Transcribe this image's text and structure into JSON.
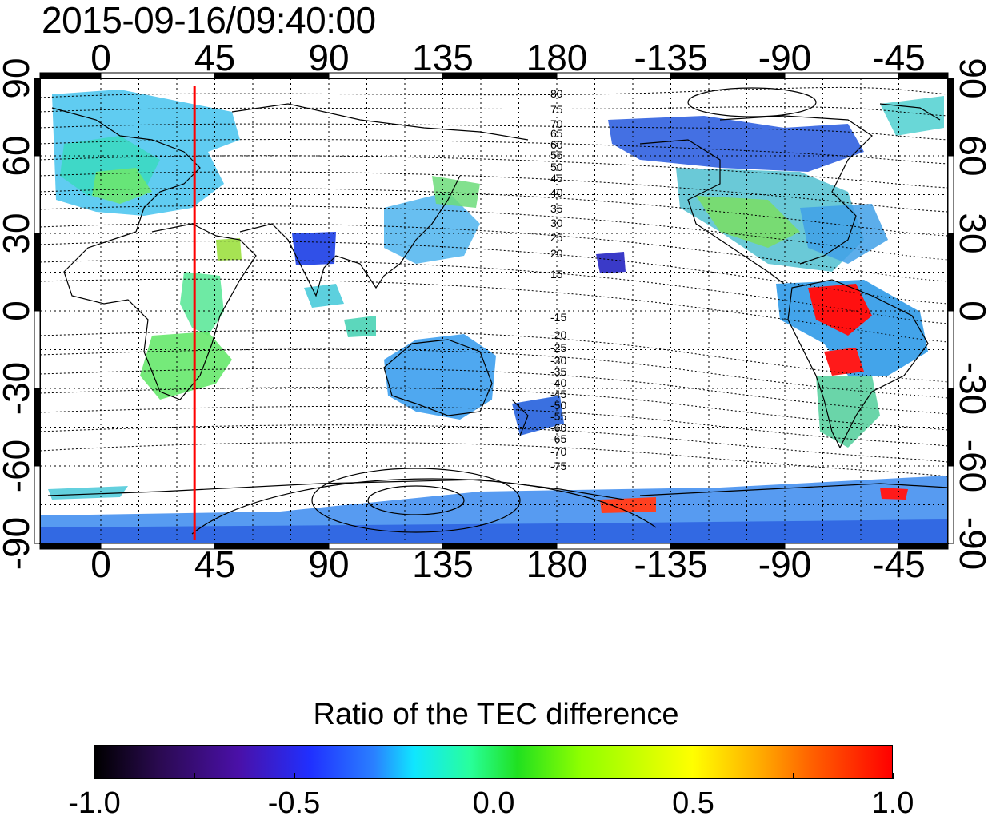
{
  "title": "2015-09-16/09:40:00",
  "map": {
    "x_tick_labels": [
      "0",
      "45",
      "90",
      "135",
      "180",
      "-135",
      "-90",
      "-45"
    ],
    "y_tick_labels": [
      "90",
      "60",
      "30",
      "0",
      "-30",
      "-60",
      "-90"
    ],
    "contour_labels_north": [
      "80",
      "75",
      "70",
      "65",
      "60",
      "55",
      "50",
      "45",
      "40",
      "35",
      "30",
      "25",
      "20",
      "15"
    ],
    "contour_labels_south": [
      "-15",
      "-20",
      "-25",
      "-30",
      "-35",
      "-40",
      "-45",
      "-50",
      "-55",
      "-60",
      "-65",
      "-70",
      "-75"
    ],
    "marker_longitude": 37,
    "marker_color": "#ff0000"
  },
  "colorbar": {
    "title": "Ratio of the TEC difference",
    "labels": [
      "-1.0",
      "-0.5",
      "0.0",
      "0.5",
      "1.0"
    ],
    "range": [
      -1.0,
      1.0
    ],
    "colors": [
      "#000000",
      "#4a10a8",
      "#2030ff",
      "#10e6ff",
      "#20e020",
      "#ffff00",
      "#ff0000"
    ]
  }
}
